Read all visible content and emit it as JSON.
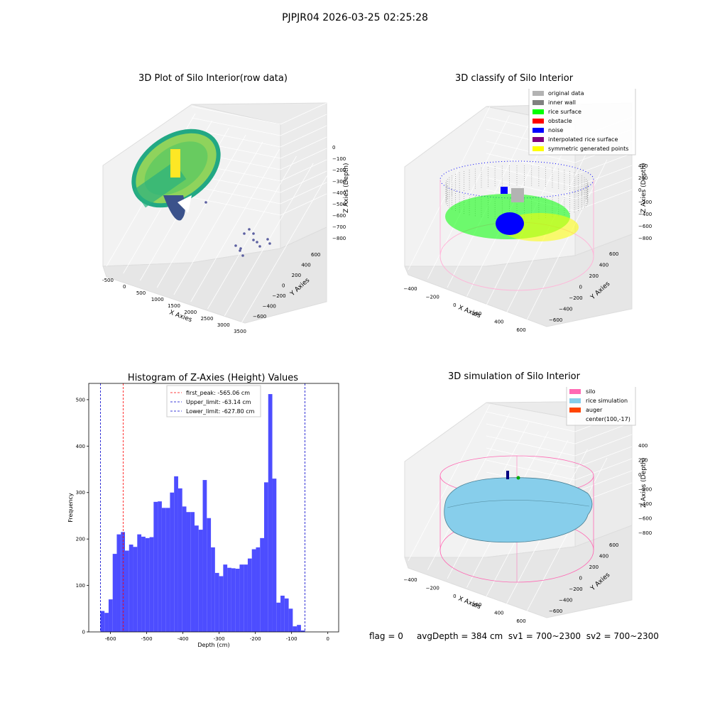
{
  "suptitle": "PJPJR04 2026-03-25 02:25:28",
  "colors": {
    "hist_bar": "#4d4dff",
    "first_peak_line": "#ff0000",
    "limit_line": "#0000cc"
  },
  "panels": {
    "raw": {
      "title": "3D Plot of Silo Interior(row data)",
      "xlabel": "X Axies",
      "ylabel": "Y Axies",
      "zlabel": "Z Axies (Depth)",
      "xticks": [
        "-500",
        "0",
        "500",
        "1000",
        "1500",
        "2000",
        "2500",
        "3000",
        "3500"
      ],
      "yticks": [
        "600",
        "400",
        "200",
        "0",
        "−200",
        "−400",
        "−600"
      ],
      "zticks": [
        "0",
        "−100",
        "−200",
        "−300",
        "−400",
        "−500",
        "−600",
        "−700",
        "−800"
      ]
    },
    "classify": {
      "title": "3D classify of Silo Interior",
      "xlabel": "X Axies",
      "ylabel": "Y Axies",
      "zlabel": "Z Axies (Depth)",
      "xticks": [
        "−400",
        "−200",
        "0",
        "200",
        "400",
        "600"
      ],
      "yticks": [
        "600",
        "400",
        "200",
        "0",
        "−200",
        "−400",
        "−600"
      ],
      "zticks": [
        "400",
        "200",
        "0",
        "−200",
        "−400",
        "−600",
        "−800"
      ],
      "legend": [
        {
          "label": "original data",
          "color": "#b3b3b3"
        },
        {
          "label": "inner wall",
          "color": "#808080"
        },
        {
          "label": "rice surface",
          "color": "#00ff00"
        },
        {
          "label": "obstacle",
          "color": "#ff0000"
        },
        {
          "label": "noise",
          "color": "#0000ff"
        },
        {
          "label": "interpolated rice surface",
          "color": "#800080"
        },
        {
          "label": "symmetric generated points",
          "color": "#ffff00"
        }
      ]
    },
    "simulation": {
      "title": "3D simulation of Silo Interior",
      "xlabel": "X Axies",
      "ylabel": "Y Axies",
      "zlabel": "Z Axies (Depth)",
      "xticks": [
        "−400",
        "−200",
        "0",
        "200",
        "400",
        "600"
      ],
      "yticks": [
        "600",
        "400",
        "200",
        "0",
        "−200",
        "−400",
        "−600"
      ],
      "zticks": [
        "400",
        "200",
        "0",
        "−200",
        "−400",
        "−600",
        "−800"
      ],
      "legend": [
        {
          "label": "silo",
          "color": "#ff69b4"
        },
        {
          "label": "rice simulation",
          "color": "#87ceeb"
        },
        {
          "label": "auger",
          "color": "#ff4500"
        },
        {
          "label": "center(100,-17)",
          "color": ""
        }
      ]
    }
  },
  "status": {
    "flag": "flag = 0",
    "avg_depth": "avgDepth = 384 cm",
    "sv1": "sv1 = 700~2300",
    "sv2": "sv2 = 700~2300"
  },
  "chart_data": {
    "type": "bar",
    "title": "Histogram of Z-Axies (Height) Values",
    "xlabel": "Depth (cm)",
    "ylabel": "Frequency",
    "xlim": [
      -660,
      30
    ],
    "ylim": [
      0,
      535
    ],
    "xticks": [
      -600,
      -500,
      -400,
      -300,
      -200,
      -100,
      0
    ],
    "yticks": [
      0,
      100,
      200,
      300,
      400,
      500
    ],
    "bin_start": -627.8,
    "bin_width": 11.3,
    "values": [
      45,
      41,
      70,
      168,
      210,
      215,
      175,
      188,
      183,
      210,
      205,
      202,
      204,
      280,
      281,
      267,
      267,
      300,
      335,
      309,
      270,
      258,
      258,
      229,
      220,
      327,
      245,
      182,
      127,
      120,
      145,
      138,
      137,
      136,
      145,
      145,
      158,
      178,
      182,
      202,
      322,
      512,
      330,
      63,
      78,
      72,
      50,
      12,
      15,
      3
    ],
    "lines": [
      {
        "label": "first_peak: -565.06 cm",
        "x": -565.06,
        "style": "red"
      },
      {
        "label": "Upper_limit: -63.14 cm",
        "x": -63.14,
        "style": "blue"
      },
      {
        "label": "Lower_limit: -627.80 cm",
        "x": -627.8,
        "style": "blue"
      }
    ]
  }
}
